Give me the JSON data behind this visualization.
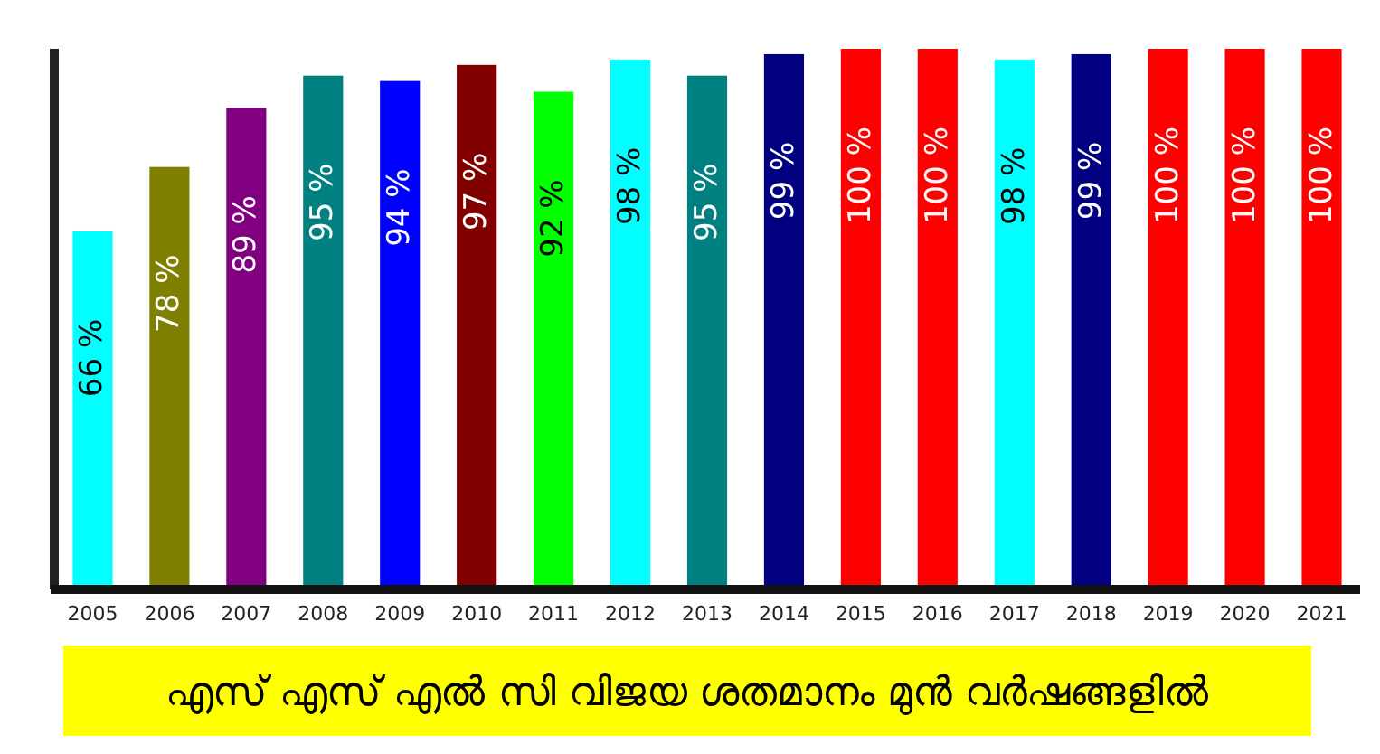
{
  "chart_data": {
    "type": "bar",
    "title": "എസ് എസ് എൽ സി വിജയ ശതമാനം മുൻ വർഷങ്ങളിൽ",
    "categories": [
      "2005",
      "2006",
      "2007",
      "2008",
      "2009",
      "2010",
      "2011",
      "2012",
      "2013",
      "2014",
      "2015",
      "2016",
      "2017",
      "2018",
      "2019",
      "2020",
      "2021"
    ],
    "values": [
      66,
      78,
      89,
      95,
      94,
      97,
      92,
      98,
      95,
      99,
      100,
      100,
      98,
      99,
      100,
      100,
      100
    ],
    "value_labels": [
      "66 %",
      "78 %",
      "89 %",
      "95 %",
      "94 %",
      "97 %",
      "92 %",
      "98 %",
      "95 %",
      "99 %",
      "100 %",
      "100 %",
      "98 %",
      "99 %",
      "100 %",
      "100 %",
      "100 %"
    ],
    "colors": [
      "#00ffff",
      "#808000",
      "#800080",
      "#008080",
      "#0000ff",
      "#800000",
      "#00ff00",
      "#00ffff",
      "#008080",
      "#000080",
      "#ff0000",
      "#ff0000",
      "#00ffff",
      "#000080",
      "#ff0000",
      "#ff0000",
      "#ff0000"
    ],
    "ylim": [
      0,
      100
    ],
    "tick_labels": "x"
  }
}
